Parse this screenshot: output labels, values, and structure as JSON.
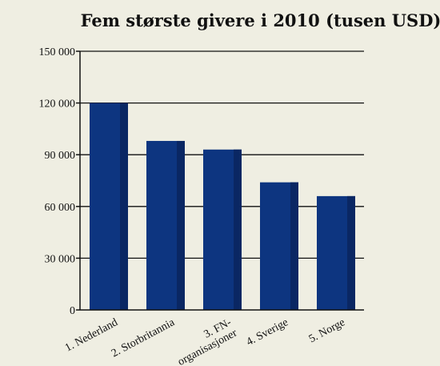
{
  "chart_data": {
    "type": "bar",
    "title": "Fem største givere i 2010 (tusen USD)",
    "xlabel": "",
    "ylabel": "",
    "categories": [
      "1. Nederland",
      "2. Storbritannia",
      "3. FN-organisasjoner",
      "4. Sverige",
      "5. Norge"
    ],
    "category_lines": [
      [
        "1. Nederland"
      ],
      [
        "2. Storbritannia"
      ],
      [
        "3. FN-",
        "organisasjoner"
      ],
      [
        "4. Sverige"
      ],
      [
        "5. Norge"
      ]
    ],
    "values": [
      120000,
      98000,
      93000,
      74000,
      66000
    ],
    "ylim": [
      0,
      150000
    ],
    "yticks": [
      0,
      30000,
      60000,
      90000,
      120000,
      150000
    ],
    "ytick_labels": [
      "0",
      "30 000",
      "60 000",
      "90 000",
      "120 000",
      "150 000"
    ],
    "grid": true,
    "colors": {
      "bar": "#0d3580",
      "bar_shade": "#0a2763",
      "background": "#efeee2",
      "text": "#111111"
    }
  }
}
